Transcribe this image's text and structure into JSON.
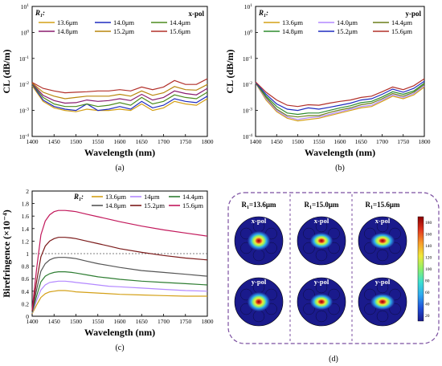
{
  "chart_data": [
    {
      "panel": "(a)",
      "type": "line",
      "corner_label": "x-pol",
      "legend_title": "R1:",
      "legend_title_sub": "1",
      "xlabel": "Wavelength (nm)",
      "ylabel": "CL (dB/m)",
      "yscale": "log",
      "xlim": [
        1400,
        1800
      ],
      "ylim_log10": [
        -4,
        1
      ],
      "x_ticks": [
        "1400",
        "1450",
        "1500",
        "1550",
        "1600",
        "1650",
        "1700",
        "1750",
        "1800"
      ],
      "y_ticks": [
        {
          "base": "10",
          "exp": "-4"
        },
        {
          "base": "10",
          "exp": "-3"
        },
        {
          "base": "10",
          "exp": "-2"
        },
        {
          "base": "10",
          "exp": "-1"
        },
        {
          "base": "10",
          "exp": "0"
        },
        {
          "base": "10",
          "exp": "1"
        }
      ],
      "x": [
        1400,
        1425,
        1450,
        1475,
        1500,
        1525,
        1550,
        1575,
        1600,
        1625,
        1650,
        1675,
        1700,
        1725,
        1750,
        1775,
        1800
      ],
      "series": [
        {
          "name": "13.6μm",
          "color": "#d4a017",
          "log10_values": [
            -2.05,
            -2.65,
            -2.9,
            -3.0,
            -3.05,
            -2.95,
            -3.0,
            -3.0,
            -2.95,
            -3.0,
            -2.75,
            -3.0,
            -2.9,
            -2.65,
            -2.75,
            -2.8,
            -2.55
          ]
        },
        {
          "name": "14.0μm",
          "color": "#1f2bbf",
          "log10_values": [
            -2.0,
            -2.6,
            -2.85,
            -2.95,
            -3.0,
            -2.75,
            -3.0,
            -2.95,
            -2.85,
            -2.95,
            -2.65,
            -2.9,
            -2.8,
            -2.55,
            -2.65,
            -2.7,
            -2.45
          ]
        },
        {
          "name": "14.4μm",
          "color": "#4d8c1f",
          "log10_values": [
            -1.98,
            -2.5,
            -2.75,
            -2.85,
            -2.85,
            -2.75,
            -2.85,
            -2.8,
            -2.7,
            -2.8,
            -2.5,
            -2.75,
            -2.65,
            -2.4,
            -2.5,
            -2.55,
            -2.3
          ]
        },
        {
          "name": "14.8μm",
          "color": "#8a1c6e",
          "log10_values": [
            -1.96,
            -2.42,
            -2.62,
            -2.72,
            -2.7,
            -2.6,
            -2.65,
            -2.62,
            -2.55,
            -2.62,
            -2.38,
            -2.6,
            -2.5,
            -2.25,
            -2.35,
            -2.4,
            -2.15
          ]
        },
        {
          "name": "15.2μm",
          "color": "#b8860b",
          "log10_values": [
            -1.94,
            -2.3,
            -2.45,
            -2.55,
            -2.5,
            -2.45,
            -2.45,
            -2.45,
            -2.38,
            -2.45,
            -2.25,
            -2.42,
            -2.32,
            -2.08,
            -2.2,
            -2.22,
            -2.0
          ]
        },
        {
          "name": "15.6μm",
          "color": "#b2302a",
          "log10_values": [
            -1.92,
            -2.15,
            -2.25,
            -2.32,
            -2.3,
            -2.28,
            -2.25,
            -2.25,
            -2.2,
            -2.25,
            -2.1,
            -2.2,
            -2.1,
            -1.85,
            -2.0,
            -2.0,
            -1.78
          ]
        }
      ]
    },
    {
      "panel": "(b)",
      "type": "line",
      "corner_label": "y-pol",
      "legend_title": "R1:",
      "legend_title_sub": "1",
      "xlabel": "Wavelength (nm)",
      "ylabel": "CL (dB/m)",
      "yscale": "log",
      "xlim": [
        1400,
        1800
      ],
      "ylim_log10": [
        -4,
        1
      ],
      "x_ticks": [
        "1400",
        "1450",
        "1500",
        "1550",
        "1600",
        "1650",
        "1700",
        "1750",
        "1800"
      ],
      "y_ticks": [
        {
          "base": "10",
          "exp": "-4"
        },
        {
          "base": "10",
          "exp": "-3"
        },
        {
          "base": "10",
          "exp": "-2"
        },
        {
          "base": "10",
          "exp": "-1"
        },
        {
          "base": "10",
          "exp": "0"
        },
        {
          "base": "10",
          "exp": "1"
        }
      ],
      "x": [
        1400,
        1425,
        1450,
        1475,
        1500,
        1525,
        1550,
        1575,
        1600,
        1625,
        1650,
        1675,
        1700,
        1725,
        1750,
        1775,
        1800
      ],
      "series": [
        {
          "name": "13.6μm",
          "color": "#d4a017",
          "log10_values": [
            -1.95,
            -2.6,
            -3.05,
            -3.3,
            -3.4,
            -3.35,
            -3.3,
            -3.2,
            -3.1,
            -3.0,
            -2.9,
            -2.85,
            -2.65,
            -2.45,
            -2.55,
            -2.4,
            -2.1
          ]
        },
        {
          "name": "14.0μm",
          "color": "#b388ff",
          "log10_values": [
            -1.95,
            -2.55,
            -3.0,
            -3.25,
            -3.35,
            -3.28,
            -3.25,
            -3.15,
            -3.05,
            -2.95,
            -2.85,
            -2.8,
            -2.6,
            -2.4,
            -2.5,
            -2.35,
            -2.05
          ]
        },
        {
          "name": "14.4μm",
          "color": "#6b7f1a",
          "log10_values": [
            -1.94,
            -2.5,
            -2.95,
            -3.2,
            -3.25,
            -3.2,
            -3.2,
            -3.08,
            -2.98,
            -2.9,
            -2.78,
            -2.72,
            -2.55,
            -2.35,
            -2.45,
            -2.3,
            -2.0
          ]
        },
        {
          "name": "14.8μm",
          "color": "#2e8b2e",
          "log10_values": [
            -1.93,
            -2.45,
            -2.85,
            -3.1,
            -3.15,
            -3.1,
            -3.1,
            -3.0,
            -2.9,
            -2.82,
            -2.7,
            -2.65,
            -2.48,
            -2.28,
            -2.38,
            -2.25,
            -1.95
          ]
        },
        {
          "name": "15.2μm",
          "color": "#1f2bbf",
          "log10_values": [
            -1.92,
            -2.38,
            -2.75,
            -2.95,
            -3.0,
            -2.9,
            -2.95,
            -2.88,
            -2.8,
            -2.72,
            -2.6,
            -2.55,
            -2.38,
            -2.18,
            -2.3,
            -2.15,
            -1.88
          ]
        },
        {
          "name": "15.6μm",
          "color": "#b2302a",
          "log10_values": [
            -1.9,
            -2.3,
            -2.6,
            -2.8,
            -2.85,
            -2.78,
            -2.8,
            -2.72,
            -2.65,
            -2.6,
            -2.5,
            -2.45,
            -2.28,
            -2.1,
            -2.2,
            -2.05,
            -1.78
          ]
        }
      ]
    },
    {
      "panel": "(c)",
      "type": "line",
      "legend_title": "R1:",
      "legend_title_sub": "1",
      "xlabel": "Wavelength (nm)",
      "ylabel": "Birefringence (×10⁻⁴)",
      "xlim": [
        1400,
        1800
      ],
      "ylim": [
        0,
        2
      ],
      "x_ticks": [
        "1400",
        "1450",
        "1500",
        "1550",
        "1600",
        "1650",
        "1700",
        "1750",
        "1800"
      ],
      "y_ticks": [
        "0",
        "0.2",
        "0.4",
        "0.6",
        "0.8",
        "1",
        "1.2",
        "1.4",
        "1.6",
        "1.8",
        "2"
      ],
      "reference_line": 1,
      "x": [
        1400,
        1410,
        1420,
        1430,
        1440,
        1450,
        1460,
        1475,
        1490,
        1500,
        1525,
        1550,
        1575,
        1600,
        1650,
        1700,
        1750,
        1800
      ],
      "series": [
        {
          "name": "13.6μm",
          "color": "#d4a017",
          "values": [
            0.04,
            0.18,
            0.3,
            0.36,
            0.39,
            0.4,
            0.41,
            0.41,
            0.4,
            0.39,
            0.38,
            0.37,
            0.36,
            0.35,
            0.34,
            0.33,
            0.32,
            0.32
          ]
        },
        {
          "name": "14μm",
          "color": "#b388ff",
          "values": [
            0.05,
            0.25,
            0.42,
            0.5,
            0.54,
            0.55,
            0.56,
            0.56,
            0.55,
            0.54,
            0.52,
            0.5,
            0.48,
            0.47,
            0.45,
            0.43,
            0.41,
            0.4
          ]
        },
        {
          "name": "14.4μm",
          "color": "#2e7d32",
          "values": [
            0.06,
            0.32,
            0.55,
            0.64,
            0.68,
            0.7,
            0.71,
            0.71,
            0.7,
            0.69,
            0.66,
            0.63,
            0.61,
            0.59,
            0.56,
            0.54,
            0.52,
            0.5
          ]
        },
        {
          "name": "14.8μm",
          "color": "#555555",
          "values": [
            0.07,
            0.42,
            0.72,
            0.84,
            0.9,
            0.93,
            0.94,
            0.94,
            0.93,
            0.92,
            0.88,
            0.84,
            0.81,
            0.78,
            0.73,
            0.7,
            0.67,
            0.64
          ]
        },
        {
          "name": "15.2μm",
          "color": "#7b1a1a",
          "values": [
            0.08,
            0.55,
            0.95,
            1.12,
            1.2,
            1.24,
            1.26,
            1.26,
            1.25,
            1.24,
            1.2,
            1.16,
            1.12,
            1.08,
            1.02,
            0.97,
            0.93,
            0.9
          ]
        },
        {
          "name": "15.6μm",
          "color": "#c2185b",
          "values": [
            0.1,
            0.75,
            1.3,
            1.52,
            1.62,
            1.67,
            1.69,
            1.69,
            1.68,
            1.67,
            1.63,
            1.59,
            1.55,
            1.51,
            1.44,
            1.38,
            1.33,
            1.28
          ]
        }
      ]
    }
  ],
  "panel_d": {
    "label": "(d)",
    "columns": [
      {
        "title": "R1=13.6μm",
        "title_sub": "1",
        "title_prefix": "R",
        "title_suffix": "=13.6μm"
      },
      {
        "title": "R1=15.0μm",
        "title_sub": "1",
        "title_prefix": "R",
        "title_suffix": "=15.0μm"
      },
      {
        "title": "R1=15.6μm",
        "title_sub": "1",
        "title_prefix": "R",
        "title_suffix": "=15.6μm"
      }
    ],
    "rows": [
      "x-pol",
      "y-pol"
    ],
    "colorbar_ticks": [
      "20",
      "40",
      "60",
      "80",
      "100",
      "120",
      "140",
      "160",
      "180"
    ],
    "colorbar_range": [
      10,
      190
    ],
    "colormap": [
      "#1a1a8c",
      "#1f4fd8",
      "#2fa8f0",
      "#3de0d0",
      "#8ef06a",
      "#f0e83a",
      "#f79a2a",
      "#e0351e",
      "#8b0000"
    ]
  }
}
